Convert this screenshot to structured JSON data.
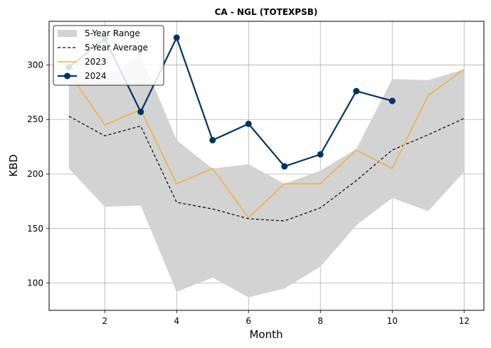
{
  "chart_data": {
    "type": "line",
    "title": "CA - NGL (TOTEXPSB)",
    "xlabel": "Month",
    "ylabel": "KBD",
    "xlim": [
      0.45,
      12.55
    ],
    "ylim": [
      75,
      340
    ],
    "xticks": [
      2,
      4,
      6,
      8,
      10,
      12
    ],
    "yticks": [
      100,
      150,
      200,
      250,
      300
    ],
    "grid": true,
    "legend_position": "top-left",
    "colors": {
      "range": "#d3d3d3",
      "average": "#000000",
      "y2023": "#f5b041",
      "y2024": "#003366"
    },
    "range": {
      "name": "5-Year Range",
      "x": [
        1,
        2,
        3,
        4,
        5,
        6,
        7,
        8,
        9,
        10,
        11,
        12
      ],
      "low": [
        205,
        170,
        171,
        92,
        105,
        87,
        95,
        115,
        153,
        178,
        166,
        202
      ],
      "high": [
        293,
        288,
        309,
        231,
        205,
        209,
        191,
        203,
        223,
        287,
        286,
        296
      ]
    },
    "series": [
      {
        "name": "5-Year Average",
        "x": [
          1,
          2,
          3,
          4,
          5,
          6,
          7,
          8,
          9,
          10,
          11,
          12
        ],
        "values": [
          253,
          235,
          244,
          174,
          168,
          159,
          157,
          169,
          194,
          222,
          236,
          251
        ]
      },
      {
        "name": "2023",
        "x": [
          1,
          2,
          3,
          4,
          5,
          6,
          7,
          8,
          9,
          10,
          11,
          12
        ],
        "values": [
          293,
          245,
          259,
          191,
          205,
          160,
          191,
          191,
          222,
          205,
          272,
          296
        ]
      },
      {
        "name": "2024",
        "x": [
          1,
          2,
          3,
          4,
          5,
          6,
          7,
          8,
          9,
          10
        ],
        "values": [
          298,
          324,
          257,
          325,
          231,
          246,
          207,
          218,
          276,
          267
        ]
      }
    ]
  }
}
